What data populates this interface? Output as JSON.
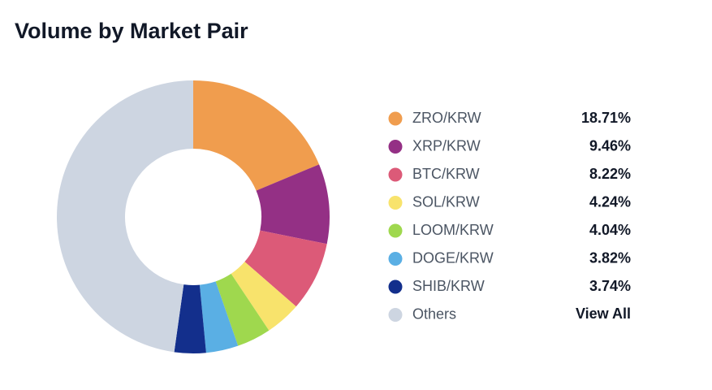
{
  "chart_data": {
    "type": "donut",
    "title": "Volume by Market Pair",
    "categories": [
      "ZRO/KRW",
      "XRP/KRW",
      "BTC/KRW",
      "SOL/KRW",
      "LOOM/KRW",
      "DOGE/KRW",
      "SHIB/KRW",
      "Others"
    ],
    "values": [
      18.71,
      9.46,
      8.22,
      4.24,
      4.04,
      3.82,
      3.74,
      47.77
    ],
    "value_labels": [
      "18.71%",
      "9.46%",
      "8.22%",
      "4.24%",
      "4.04%",
      "3.82%",
      "3.74%",
      null
    ],
    "colors": [
      "#f09d4e",
      "#943085",
      "#dc5a78",
      "#f8e36c",
      "#9fd84e",
      "#5aafe4",
      "#132f8c",
      "#cdd5e1"
    ],
    "link": "View All"
  }
}
